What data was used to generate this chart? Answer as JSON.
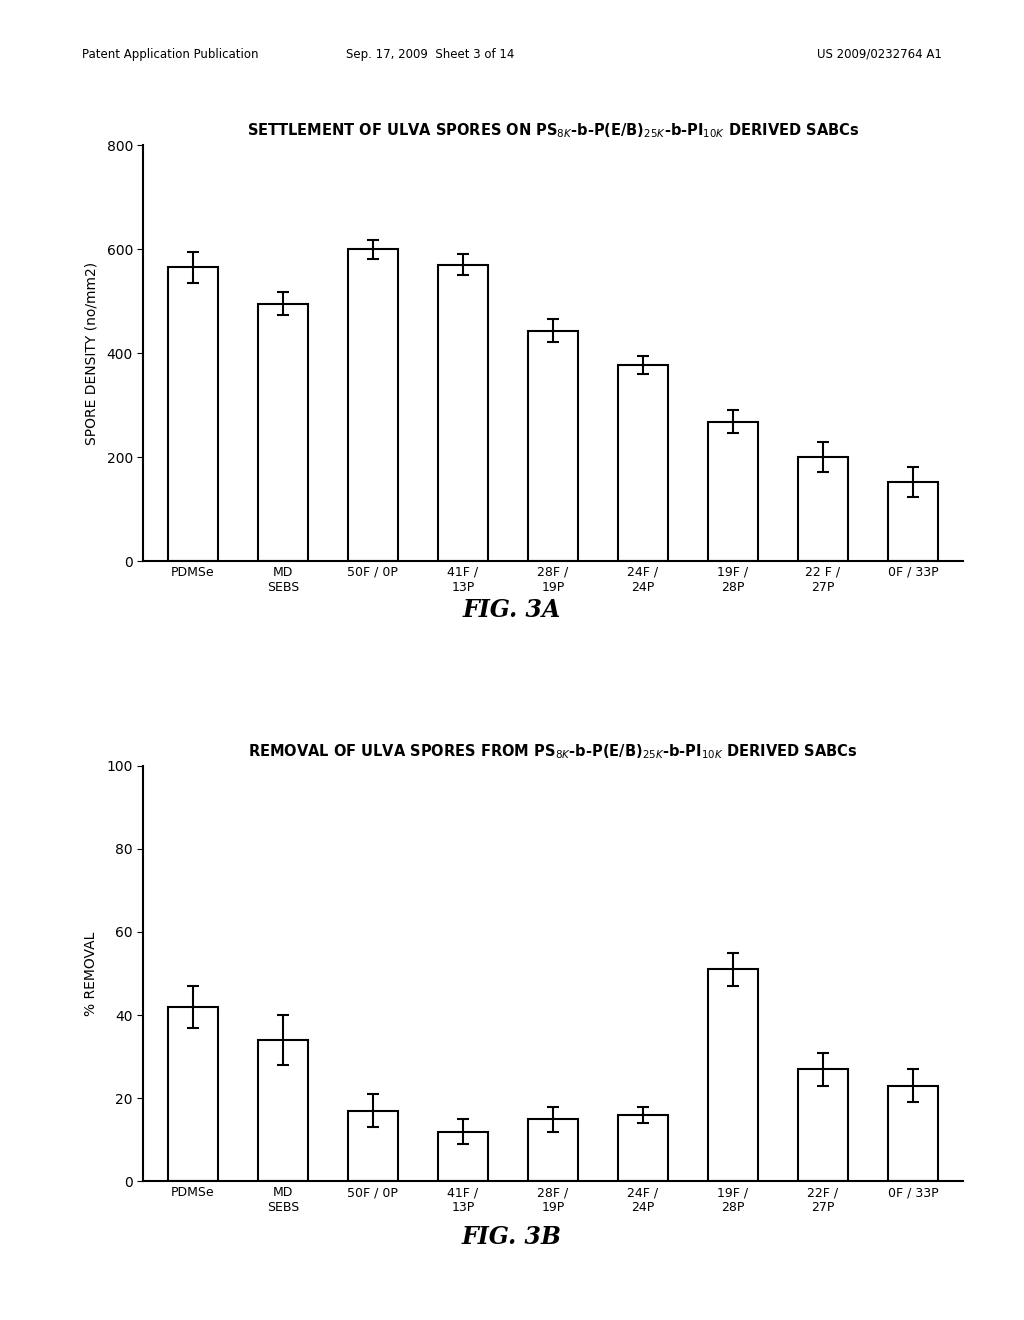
{
  "header_left": "Patent Application Publication",
  "header_mid": "Sep. 17, 2009  Sheet 3 of 14",
  "header_right": "US 2009/0232764 A1",
  "fig3a": {
    "title_str": "SETTLEMENT OF ULVA SPORES ON PS$_{8K}$-b-P(E/B)$_{25K}$-b-PI$_{10K}$ DERIVED SABCs",
    "ylabel": "SPORE DENSITY (no/mm2)",
    "ylim": [
      0,
      800
    ],
    "yticks": [
      0,
      200,
      400,
      600,
      800
    ],
    "categories": [
      "PDMSe",
      "MD\nSEBS",
      "50F / 0P",
      "41F /\n13P",
      "28F /\n19P",
      "24F /\n24P",
      "19F /\n28P",
      "22 F /\n27P",
      "0F / 33P"
    ],
    "values": [
      565,
      495,
      600,
      570,
      443,
      377,
      268,
      200,
      152
    ],
    "errors": [
      30,
      22,
      18,
      20,
      22,
      18,
      22,
      28,
      28
    ],
    "caption": "FIG. 3A"
  },
  "fig3b": {
    "title_str": "REMOVAL OF ULVA SPORES FROM PS$_{8K}$-b-P(E/B)$_{25K}$-b-PI$_{10K}$ DERIVED SABCs",
    "ylabel": "% REMOVAL",
    "ylim": [
      0,
      100
    ],
    "yticks": [
      0,
      20,
      40,
      60,
      80,
      100
    ],
    "categories": [
      "PDMSe",
      "MD\nSEBS",
      "50F / 0P",
      "41F /\n13P",
      "28F /\n19P",
      "24F /\n24P",
      "19F /\n28P",
      "22F /\n27P",
      "0F / 33P"
    ],
    "values": [
      42,
      34,
      17,
      12,
      15,
      16,
      51,
      27,
      23
    ],
    "errors": [
      5,
      6,
      4,
      3,
      3,
      2,
      4,
      4,
      4
    ],
    "caption": "FIG. 3B"
  },
  "bar_color": "white",
  "bar_edgecolor": "black",
  "bar_linewidth": 1.5,
  "bar_width": 0.55,
  "background_color": "white",
  "text_color": "black"
}
